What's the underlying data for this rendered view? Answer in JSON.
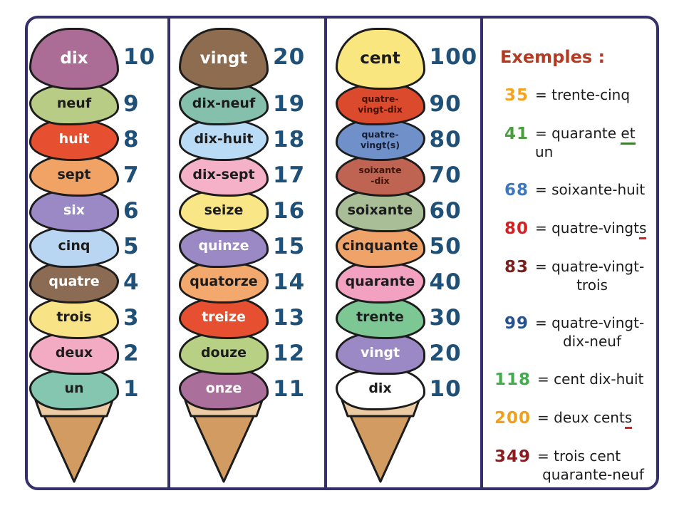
{
  "colors": {
    "card_border": "#35306b",
    "scoop_outline": "#1c1c1c",
    "number": "#1f5078",
    "cone_rim": "#eccaa2",
    "cone_body": "#d19b61",
    "examples_title": "#b23b22"
  },
  "columns": [
    {
      "name": "ones",
      "scoops": [
        {
          "label": "dix",
          "value": "10",
          "color": "#ab6d95",
          "text_color": "#ffffff"
        },
        {
          "label": "neuf",
          "value": "9",
          "color": "#b8cc85",
          "text_color": "#1c1c1c"
        },
        {
          "label": "huit",
          "value": "8",
          "color": "#e65031",
          "text_color": "#ffffff"
        },
        {
          "label": "sept",
          "value": "7",
          "color": "#f1a366",
          "text_color": "#1c1c1c"
        },
        {
          "label": "six",
          "value": "6",
          "color": "#9b89c6",
          "text_color": "#ffffff"
        },
        {
          "label": "cinq",
          "value": "5",
          "color": "#b8d6f2",
          "text_color": "#1c1c1c"
        },
        {
          "label": "quatre",
          "value": "4",
          "color": "#8b6b53",
          "text_color": "#ffffff"
        },
        {
          "label": "trois",
          "value": "3",
          "color": "#f9e387",
          "text_color": "#1c1c1c"
        },
        {
          "label": "deux",
          "value": "2",
          "color": "#f3abc3",
          "text_color": "#1c1c1c"
        },
        {
          "label": "un",
          "value": "1",
          "color": "#85c6b0",
          "text_color": "#1c1c1c"
        }
      ]
    },
    {
      "name": "teens",
      "scoops": [
        {
          "label": "vingt",
          "value": "20",
          "color": "#8d6c50",
          "text_color": "#ffffff"
        },
        {
          "label": "dix-neuf",
          "value": "19",
          "color": "#85c0ac",
          "text_color": "#1c1c1c"
        },
        {
          "label": "dix-huit",
          "value": "18",
          "color": "#badbf5",
          "text_color": "#1c1c1c"
        },
        {
          "label": "dix-sept",
          "value": "17",
          "color": "#f4b1c8",
          "text_color": "#1c1c1c"
        },
        {
          "label": "seize",
          "value": "16",
          "color": "#f9e687",
          "text_color": "#1c1c1c"
        },
        {
          "label": "quinze",
          "value": "15",
          "color": "#9b89c6",
          "text_color": "#ffffff"
        },
        {
          "label": "quatorze",
          "value": "14",
          "color": "#f3a96d",
          "text_color": "#1c1c1c"
        },
        {
          "label": "treize",
          "value": "13",
          "color": "#e65031",
          "text_color": "#ffffff"
        },
        {
          "label": "douze",
          "value": "12",
          "color": "#b8d083",
          "text_color": "#1c1c1c"
        },
        {
          "label": "onze",
          "value": "11",
          "color": "#aa6f9a",
          "text_color": "#ffffff"
        }
      ]
    },
    {
      "name": "tens",
      "scoops": [
        {
          "label": "cent",
          "value": "100",
          "color": "#f9e67f",
          "text_color": "#1c1c1c"
        },
        {
          "label": "quatre-\nvingt-dix",
          "value": "90",
          "color": "#dc4a2d",
          "text_color": "#401409",
          "small": true
        },
        {
          "label": "quatre-\nvingt(s)",
          "value": "80",
          "color": "#6f90c8",
          "text_color": "#161e33",
          "small": true
        },
        {
          "label": "soixante\n-dix",
          "value": "70",
          "color": "#bf6352",
          "text_color": "#3c150d",
          "small": true
        },
        {
          "label": "soixante",
          "value": "60",
          "color": "#a9bd97",
          "text_color": "#1c1c1c"
        },
        {
          "label": "cinquante",
          "value": "50",
          "color": "#f0a368",
          "text_color": "#1c1c1c"
        },
        {
          "label": "quarante",
          "value": "40",
          "color": "#f2a2c0",
          "text_color": "#1c1c1c"
        },
        {
          "label": "trente",
          "value": "30",
          "color": "#7dc795",
          "text_color": "#1c1c1c"
        },
        {
          "label": "vingt",
          "value": "20",
          "color": "#9b89c6",
          "text_color": "#ffffff"
        },
        {
          "label": "dix",
          "value": "10",
          "color": "#ffffff",
          "text_color": "#1c1c1c"
        }
      ]
    }
  ],
  "examples": {
    "title": "Exemples :",
    "items": [
      {
        "number": "35",
        "number_color": "#f5a31e",
        "parts": [
          {
            "t": "= trente-cinq"
          }
        ]
      },
      {
        "number": "41",
        "number_color": "#4a9e3f",
        "parts": [
          {
            "t": "= quarante "
          },
          {
            "t": "et",
            "underline": "#3e7c2f"
          },
          {
            "t": " un"
          }
        ]
      },
      {
        "number": "68",
        "number_color": "#3b78c2",
        "parts": [
          {
            "t": "= soixante-huit"
          }
        ]
      },
      {
        "number": "80",
        "number_color": "#d61f1f",
        "parts": [
          {
            "t": "= quatre-vingt"
          },
          {
            "t": "s",
            "underline": "#d61f1f"
          }
        ]
      },
      {
        "number": "83",
        "number_color": "#7a1f1c",
        "parts": [
          {
            "t": "= quatre-vingt-"
          }
        ],
        "line2": "trois"
      },
      {
        "number": "99",
        "number_color": "#27508f",
        "parts": [
          {
            "t": "= quatre-vingt-"
          }
        ],
        "line2": "dix-neuf"
      },
      {
        "number": "118",
        "number_color": "#3fae4a",
        "parts": [
          {
            "t": "= cent dix-huit"
          }
        ]
      },
      {
        "number": "200",
        "number_color": "#f0a11c",
        "parts": [
          {
            "t": "= deux cent"
          },
          {
            "t": "s",
            "underline": "#d61f1f"
          }
        ]
      },
      {
        "number": "349",
        "number_color": "#8e1b1e",
        "parts": [
          {
            "t": "= trois cent"
          }
        ],
        "line2": "quarante-neuf"
      }
    ]
  }
}
